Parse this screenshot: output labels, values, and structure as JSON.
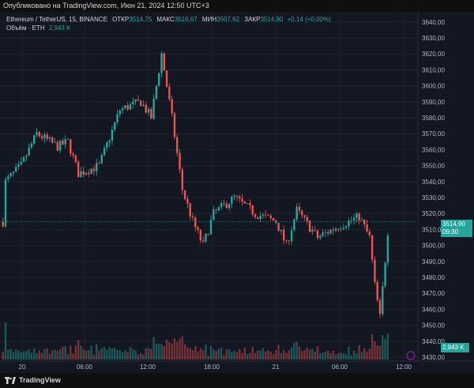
{
  "header": {
    "published_text": "Опубликовано на TradingView.com, Июн 21, 2024 12:50 UTC+3"
  },
  "legend": {
    "symbol": "Ethereum / TetherUS, 15, BINANCE",
    "open_label": "ОТКР",
    "open_value": "3514,75",
    "high_label": "МАКС",
    "high_value": "3516,67",
    "low_label": "МИН",
    "low_value": "3507,62",
    "close_label": "ЗАКР",
    "close_value": "3514,90",
    "change": "+0,14 (+0,00%)",
    "volume_label": "Объём · ETH",
    "volume_value": "2,943 K"
  },
  "price_axis": {
    "ticks": [
      "3640,00",
      "3630,00",
      "3620,00",
      "3610,00",
      "3600,00",
      "3590,00",
      "3580,00",
      "3570,00",
      "3560,00",
      "3550,00",
      "3540,00",
      "3530,00",
      "3520,00",
      "3510,00",
      "3500,00",
      "3490,00",
      "3480,00",
      "3470,00",
      "3460,00",
      "3450,00",
      "3440,00",
      "3430,00"
    ]
  },
  "time_axis": {
    "labels": [
      "20",
      "06:00",
      "12:00",
      "18:00",
      "21",
      "06:00",
      "12:00"
    ]
  },
  "current_price": {
    "price": "3514,90",
    "countdown": "09:30"
  },
  "current_volume": "2,943 K",
  "footer": {
    "brand": "TradingView"
  },
  "colors": {
    "up": "#26a69a",
    "down": "#ef5350",
    "background": "#131722",
    "grid": "#1e222d",
    "text": "#d1d4dc"
  },
  "chart_data": {
    "type": "candlestick",
    "symbol": "Ethereum / TetherUS",
    "interval": "15",
    "exchange": "BINANCE",
    "ylim": [
      3430,
      3645
    ],
    "last_close": 3514.9,
    "approx_price_path": [
      {
        "t": "20 00:00",
        "price": 3540
      },
      {
        "t": "20 01:30",
        "price": 3550
      },
      {
        "t": "20 03:00",
        "price": 3570
      },
      {
        "t": "20 05:00",
        "price": 3562
      },
      {
        "t": "20 06:00",
        "price": 3565
      },
      {
        "t": "20 07:00",
        "price": 3545
      },
      {
        "t": "20 09:00",
        "price": 3550
      },
      {
        "t": "20 11:00",
        "price": 3585
      },
      {
        "t": "20 13:00",
        "price": 3590
      },
      {
        "t": "20 14:00",
        "price": 3580
      },
      {
        "t": "20 15:00",
        "price": 3620
      },
      {
        "t": "20 16:00",
        "price": 3580
      },
      {
        "t": "20 17:00",
        "price": 3535
      },
      {
        "t": "20 18:00",
        "price": 3515
      },
      {
        "t": "20 19:00",
        "price": 3500
      },
      {
        "t": "20 20:00",
        "price": 3520
      },
      {
        "t": "20 22:00",
        "price": 3530
      },
      {
        "t": "21 00:00",
        "price": 3520
      },
      {
        "t": "21 02:00",
        "price": 3515
      },
      {
        "t": "21 03:00",
        "price": 3500
      },
      {
        "t": "21 04:00",
        "price": 3522
      },
      {
        "t": "21 06:00",
        "price": 3505
      },
      {
        "t": "21 08:00",
        "price": 3512
      },
      {
        "t": "21 10:00",
        "price": 3518
      },
      {
        "t": "21 11:00",
        "price": 3505
      },
      {
        "t": "21 11:30",
        "price": 3475
      },
      {
        "t": "21 12:00",
        "price": 3455
      },
      {
        "t": "21 12:50",
        "price": 3514.9
      }
    ]
  }
}
